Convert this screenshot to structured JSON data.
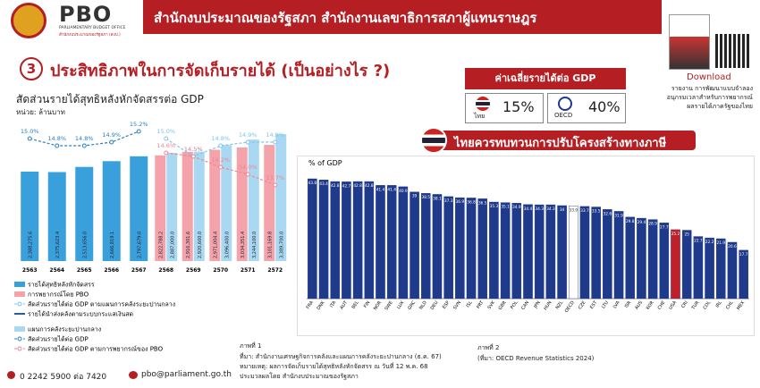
{
  "header": {
    "logo": "PBO",
    "logo_sub": "PARLIAMENTARY BUDGET OFFICE",
    "logo_sub_th": "สำนักงบประมาณของรัฐสภา (สงป.)",
    "title": "สำนักงบประมาณของรัฐสภา สำนักงานเลขาธิการสภาผู้แทนราษฎร"
  },
  "section": {
    "number": "3",
    "title": "ประสิทธิภาพในการจัดเก็บรายได้ (เป็นอย่างไร ?)"
  },
  "download": {
    "label": "Download",
    "text": [
      "รายงาน การพัฒนาแบบจำลอง",
      "อนุกรมเวลาสำหรับการพยากรณ์",
      "ผลรายได้ภาครัฐของไทย"
    ]
  },
  "summary": {
    "title": "ค่าเฉลี่ยรายได้ต่อ GDP",
    "items": [
      {
        "name": "ไทย",
        "value": "15%"
      },
      {
        "name": "OECD",
        "value": "40%"
      }
    ]
  },
  "banner": "ไทยควรทบทวนการปรับโครงสร้างทางภาษี",
  "chart_data": [
    {
      "type": "bar_line",
      "title": "สัดส่วนรายได้สุทธิหลังหักจัดสรรต่อ GDP",
      "subtitle": "หน่วย: ล้านบาท",
      "categories": [
        "2563",
        "2564",
        "2565",
        "2566",
        "2567",
        "2568",
        "2569",
        "2570",
        "2571",
        "2572"
      ],
      "series": [
        {
          "name": "รายได้สุทธิหลังหักจัดสรร",
          "kind": "bar",
          "color": "#3aa0dc",
          "values": [
            2388275.6,
            2375623.4,
            2513656.0,
            2666819.1,
            2797679.0,
            null,
            null,
            null,
            null,
            null
          ],
          "value_labels": [
            "2,388,275.6",
            "2,375,623.4",
            "2,513,656.0",
            "2,666,819.1",
            "2,797,679.0",
            null,
            null,
            null,
            null,
            null
          ]
        },
        {
          "name": "การพยากรณ์โดย PBO",
          "kind": "bar",
          "color": "#f4a3ab",
          "values": [
            null,
            null,
            null,
            null,
            null,
            2822788.2,
            2916301.6,
            2971004.4,
            3034351.4,
            3101169.8
          ],
          "value_labels": [
            null,
            null,
            null,
            null,
            null,
            "2,822,788.2",
            "2,916,301.6",
            "2,971,004.4",
            "3,034,351.4",
            "3,101,169.8"
          ]
        },
        {
          "name": "สัดส่วนรายได้ต่อ GDP ตามแผนการคลังระยะปานกลาง",
          "kind": "line",
          "color": "#7cc6ea",
          "values": [
            null,
            null,
            null,
            null,
            null,
            15.0,
            14.5,
            14.8,
            14.9,
            14.9
          ],
          "value_labels": [
            null,
            null,
            null,
            null,
            null,
            "15.0%",
            "14.5%",
            "14.8%",
            "14.9%",
            "14.9%"
          ]
        },
        {
          "name": "แผนการคลังระยะปานกลาง",
          "kind": "bar",
          "color": "#a9d9f2",
          "values": [
            null,
            null,
            null,
            null,
            null,
            2887000.0,
            2920600.0,
            3096400.0,
            3244100.0,
            3389700.0
          ],
          "value_labels": [
            null,
            null,
            null,
            null,
            null,
            "2,887,000.0",
            "2,920,600.0",
            "3,096,400.0",
            "3,244,100.0",
            "3,389,700.0"
          ]
        },
        {
          "name": "สัดส่วนรายได้ต่อ GDP",
          "kind": "line",
          "color": "#2a7fc0",
          "values": [
            15.0,
            14.8,
            14.8,
            14.9,
            15.2,
            null,
            null,
            null,
            null,
            null
          ],
          "value_labels": [
            "15.0%",
            "14.8%",
            "14.8%",
            "14.9%",
            "15.2%",
            null,
            null,
            null,
            null,
            null
          ]
        },
        {
          "name": "สัดส่วนรายได้ต่อ GDP ตามการพยากรณ์ของ PBO",
          "kind": "line",
          "color": "#f08494",
          "values": [
            null,
            null,
            null,
            null,
            null,
            14.6,
            14.5,
            14.2,
            14.0,
            13.7
          ],
          "value_labels": [
            null,
            null,
            null,
            null,
            null,
            "14.6%",
            "14.5%",
            "14.2%",
            "14.0%",
            "13.7%"
          ]
        }
      ],
      "legend_extra": "รายได้นำส่งคลังตามระบบกระแสเงินสด"
    },
    {
      "type": "bar",
      "ylabel": "% of GDP",
      "categories": [
        "FRA",
        "DNK",
        "ITA",
        "AUT",
        "BEL",
        "FIN",
        "NOR",
        "SWE",
        "LUX",
        "GRC",
        "NLD",
        "DEU",
        "ESP",
        "SVN",
        "ISL",
        "PRT",
        "SVK",
        "GBR",
        "POL",
        "CAN",
        "JPN",
        "HUN",
        "NZL",
        "OECD",
        "CZE",
        "EST",
        "LTU",
        "LVA",
        "ISR",
        "AUS",
        "KOR",
        "CHE",
        "USA",
        "CRI",
        "TUR",
        "COL",
        "IRL",
        "CHL",
        "MEX"
      ],
      "values": [
        43.8,
        43.4,
        42.8,
        42.7,
        42.8,
        42.8,
        41.4,
        41.4,
        40.9,
        39.0,
        38.5,
        38.1,
        37.3,
        36.9,
        36.8,
        36.5,
        35.3,
        35.1,
        34.9,
        34.4,
        34.3,
        34.3,
        34.0,
        33.9,
        33.7,
        33.5,
        32.6,
        31.9,
        29.8,
        29.4,
        28.9,
        27.7,
        25.2,
        25.0,
        22.7,
        22.2,
        21.9,
        20.6,
        17.7
      ],
      "colors": [
        "#1f3a8a",
        "#1f3a8a",
        "#1f3a8a",
        "#1f3a8a",
        "#1f3a8a",
        "#1f3a8a",
        "#1f3a8a",
        "#1f3a8a",
        "#1f3a8a",
        "#1f3a8a",
        "#1f3a8a",
        "#1f3a8a",
        "#1f3a8a",
        "#1f3a8a",
        "#1f3a8a",
        "#1f3a8a",
        "#1f3a8a",
        "#1f3a8a",
        "#1f3a8a",
        "#1f3a8a",
        "#1f3a8a",
        "#1f3a8a",
        "#1f3a8a",
        "#ffffff",
        "#1f3a8a",
        "#1f3a8a",
        "#1f3a8a",
        "#1f3a8a",
        "#1f3a8a",
        "#1f3a8a",
        "#1f3a8a",
        "#1f3a8a",
        "#c0202a",
        "#1f3a8a",
        "#1f3a8a",
        "#1f3a8a",
        "#1f3a8a",
        "#1f3a8a",
        "#1f3a8a"
      ]
    }
  ],
  "notes": {
    "fig1": {
      "label": "ภาพที่ 1",
      "lines": [
        "ที่มา: สำนักงานเศรษฐกิจการคลังและแผนการคลังระยะปานกลาง (ธ.ค. 67)",
        "หมายเหตุ: ผลการจัดเก็บรายได้สุทธิหลังหักจัดสรร ณ วันที่ 12 พ.ค. 68",
        "ประมวลผลโดย สำนักงบประมาณของรัฐสภา"
      ]
    },
    "fig2": {
      "label": "ภาพที่ 2",
      "lines": [
        "(ที่มา: OECD Revenue Statistics 2024)"
      ]
    }
  },
  "contact": {
    "phone": "0 2242 5900 ต่อ 7420",
    "email": "pbo@parliament.go.th"
  }
}
